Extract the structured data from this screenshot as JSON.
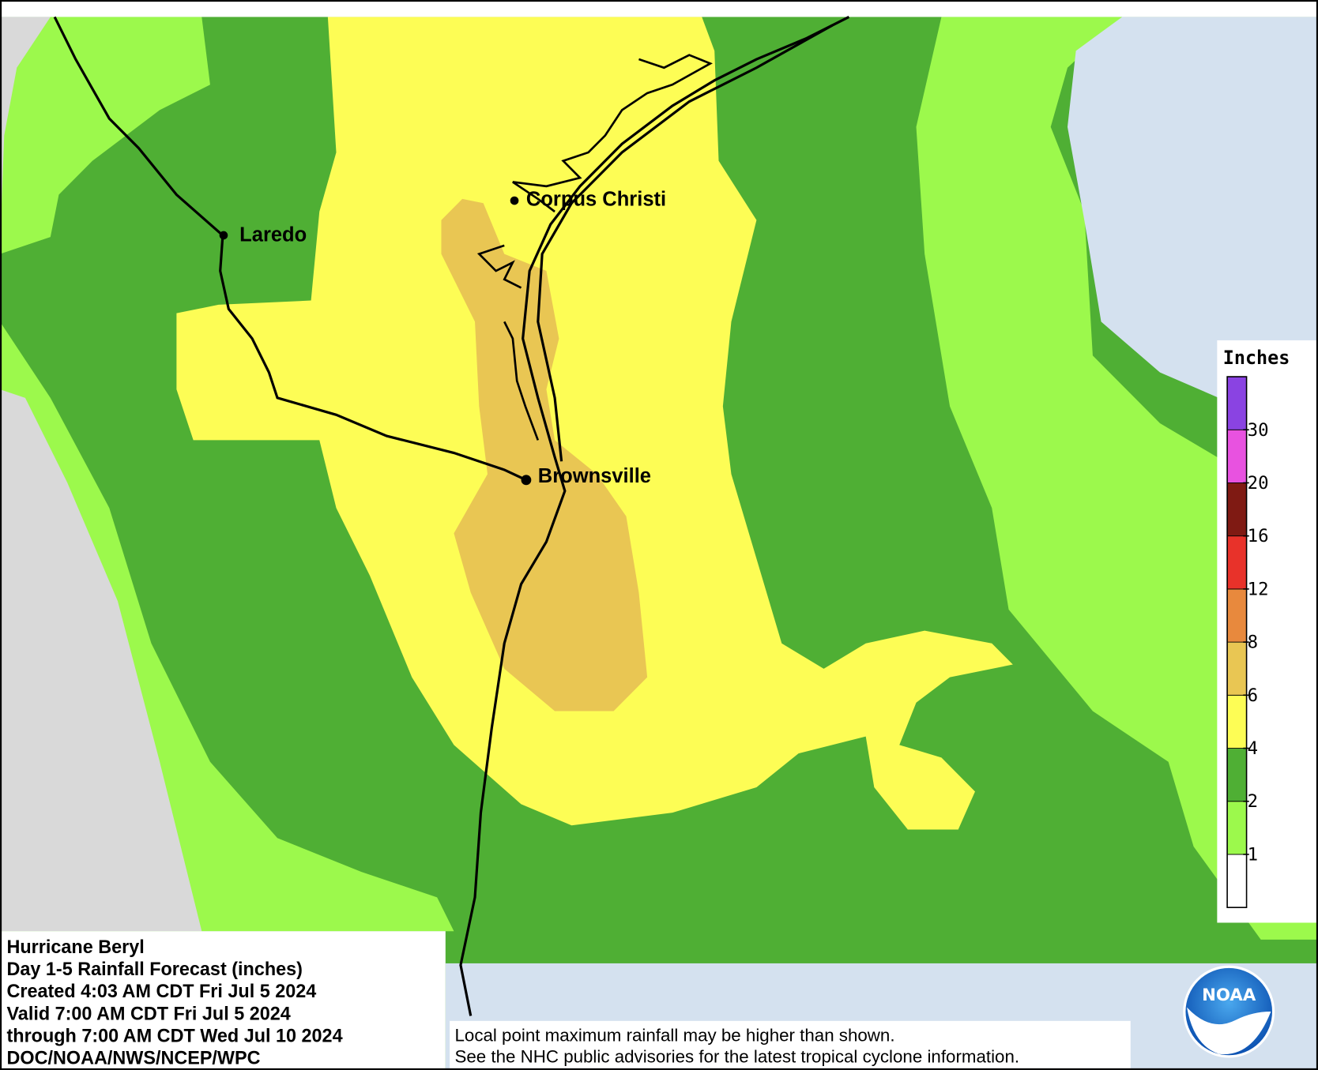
{
  "map": {
    "cities": [
      {
        "label": "Corpus Christi"
      },
      {
        "label": "Laredo"
      },
      {
        "label": "Brownsville"
      }
    ]
  },
  "info": {
    "lines": [
      "Hurricane Beryl",
      "Day 1-5 Rainfall Forecast (inches)",
      "Created 4:03 AM CDT Fri Jul 5 2024",
      "Valid 7:00 AM CDT Fri Jul 5 2024",
      "through 7:00 AM CDT Wed Jul 10 2024",
      "DOC/NOAA/NWS/NCEP/WPC"
    ]
  },
  "notes": [
    "Local point maximum rainfall may be higher than shown.",
    "See the NHC public advisories for the latest tropical cyclone information."
  ],
  "legend": {
    "title": "Inches",
    "ticks": [
      1,
      2,
      4,
      6,
      8,
      12,
      16,
      20,
      30
    ],
    "colors": [
      "#ffffff",
      "#9cf94c",
      "#4faf34",
      "#fdfd55",
      "#e9c653",
      "#e8893d",
      "#e8322a",
      "#7f1a13",
      "#e852e0",
      "#8a43e2"
    ]
  },
  "logo": "NOAA"
}
